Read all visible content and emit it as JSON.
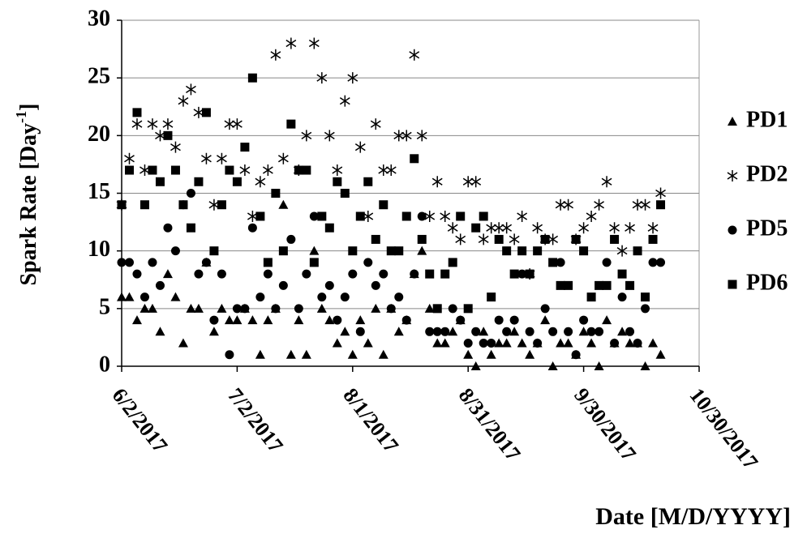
{
  "chart_data": {
    "type": "scatter",
    "ylabel": {
      "text": "Spark Rate [Day",
      "superscript": "-1",
      "suffix": "]"
    },
    "xlabel": "Date [M/D/YYYY]",
    "x": [
      "6/2/2017",
      "6/4/2017",
      "6/6/2017",
      "6/8/2017",
      "6/10/2017",
      "6/12/2017",
      "6/14/2017",
      "6/16/2017",
      "6/18/2017",
      "6/20/2017",
      "6/22/2017",
      "6/24/2017",
      "6/26/2017",
      "6/28/2017",
      "6/30/2017",
      "7/2/2017",
      "7/4/2017",
      "7/6/2017",
      "7/8/2017",
      "7/10/2017",
      "7/12/2017",
      "7/14/2017",
      "7/16/2017",
      "7/18/2017",
      "7/20/2017",
      "7/22/2017",
      "7/24/2017",
      "7/26/2017",
      "7/28/2017",
      "7/30/2017",
      "8/1/2017",
      "8/3/2017",
      "8/5/2017",
      "8/7/2017",
      "8/9/2017",
      "8/11/2017",
      "8/13/2017",
      "8/15/2017",
      "8/17/2017",
      "8/19/2017",
      "8/21/2017",
      "8/23/2017",
      "8/25/2017",
      "8/27/2017",
      "8/29/2017",
      "8/31/2017",
      "9/2/2017",
      "9/4/2017",
      "9/6/2017",
      "9/8/2017",
      "9/10/2017",
      "9/12/2017",
      "9/14/2017",
      "9/16/2017",
      "9/18/2017",
      "9/20/2017",
      "9/22/2017",
      "9/24/2017",
      "9/26/2017",
      "9/28/2017",
      "9/30/2017",
      "10/2/2017",
      "10/4/2017",
      "10/6/2017",
      "10/8/2017",
      "10/10/2017",
      "10/12/2017",
      "10/14/2017",
      "10/16/2017",
      "10/18/2017",
      "10/20/2017"
    ],
    "series": [
      {
        "name": "PD1",
        "marker": "triangle",
        "color": "#000000",
        "values": [
          6,
          6,
          4,
          5,
          5,
          3,
          8,
          6,
          2,
          5,
          5,
          9,
          3,
          5,
          4,
          4,
          5,
          4,
          1,
          4,
          5,
          14,
          1,
          4,
          1,
          10,
          5,
          4,
          2,
          3,
          1,
          4,
          2,
          5,
          1,
          5,
          3,
          4,
          8,
          10,
          5,
          2,
          2,
          3,
          4,
          1,
          0,
          3,
          1,
          2,
          2,
          3,
          2,
          1,
          2,
          4,
          0,
          2,
          2,
          1,
          3,
          2,
          0,
          4,
          2,
          3,
          2,
          2,
          0,
          2,
          1
        ]
      },
      {
        "name": "PD2",
        "marker": "asterisk",
        "color": "#000000",
        "values": [
          14,
          18,
          21,
          17,
          21,
          20,
          21,
          19,
          23,
          24,
          22,
          18,
          14,
          18,
          21,
          21,
          17,
          13,
          16,
          17,
          27,
          18,
          28,
          17,
          20,
          28,
          25,
          20,
          17,
          23,
          25,
          19,
          13,
          21,
          17,
          17,
          20,
          20,
          27,
          20,
          13,
          16,
          13,
          12,
          11,
          16,
          16,
          11,
          12,
          12,
          12,
          11,
          13,
          8,
          12,
          11,
          11,
          14,
          14,
          11,
          12,
          13,
          14,
          16,
          12,
          10,
          12,
          14,
          14,
          12,
          15
        ]
      },
      {
        "name": "PD5",
        "marker": "circle",
        "color": "#000000",
        "values": [
          9,
          9,
          8,
          6,
          9,
          7,
          12,
          10,
          14,
          15,
          8,
          9,
          4,
          8,
          1,
          5,
          5,
          12,
          6,
          8,
          5,
          7,
          11,
          5,
          8,
          13,
          6,
          7,
          4,
          6,
          8,
          3,
          9,
          7,
          8,
          5,
          6,
          4,
          8,
          13,
          3,
          3,
          3,
          5,
          4,
          2,
          3,
          2,
          2,
          4,
          3,
          4,
          8,
          3,
          2,
          5,
          3,
          9,
          3,
          1,
          4,
          3,
          3,
          9,
          2,
          6,
          3,
          2,
          5,
          9,
          9
        ]
      },
      {
        "name": "PD6",
        "marker": "square",
        "color": "#000000",
        "values": [
          14,
          17,
          22,
          14,
          17,
          16,
          20,
          17,
          14,
          12,
          16,
          22,
          10,
          14,
          17,
          16,
          19,
          25,
          13,
          9,
          15,
          10,
          21,
          17,
          17,
          9,
          13,
          12,
          16,
          15,
          10,
          13,
          16,
          11,
          14,
          10,
          10,
          13,
          18,
          11,
          8,
          5,
          8,
          9,
          13,
          5,
          12,
          13,
          6,
          11,
          10,
          8,
          10,
          8,
          10,
          11,
          9,
          7,
          7,
          11,
          10,
          6,
          7,
          7,
          11,
          8,
          7,
          10,
          6,
          11,
          14
        ]
      }
    ],
    "xlim": [
      "6/2/2017",
      "10/30/2017"
    ],
    "xticks": [
      "6/2/2017",
      "7/2/2017",
      "8/1/2017",
      "8/31/2017",
      "9/30/2017",
      "10/30/2017"
    ],
    "ylim": [
      0,
      30
    ],
    "yticks": [
      0,
      5,
      10,
      15,
      20,
      25,
      30
    ],
    "grid": true,
    "legend": "right"
  }
}
